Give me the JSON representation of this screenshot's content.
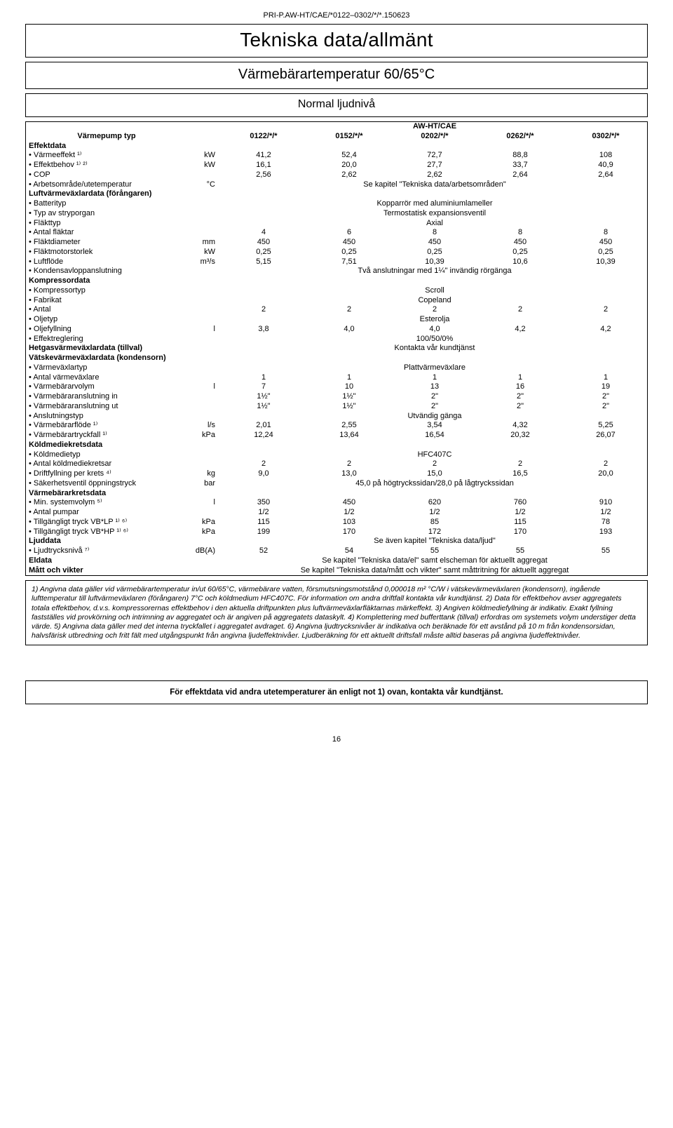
{
  "doc_code": "PRI-P.AW-HT/CAE/*0122–0302/*/*.150623",
  "headings": {
    "main": "Tekniska data/allmänt",
    "sub": "Värmebärartemperatur 60/65°C",
    "mode": "Normal ljudnivå"
  },
  "brand": "AW-HT/CAE",
  "pump_type_label": "Värmepump typ",
  "models": [
    "0122/*/*",
    "0152/*/*",
    "0202/*/*",
    "0262/*/*",
    "0302/*/*"
  ],
  "sections": {
    "effektdata": {
      "title": "Effektdata",
      "rows": [
        {
          "label": "Värmeeffekt ¹⁾",
          "unit": "kW",
          "vals": [
            "41,2",
            "52,4",
            "72,7",
            "88,8",
            "108"
          ]
        },
        {
          "label": "Effektbehov ¹⁾ ²⁾",
          "unit": "kW",
          "vals": [
            "16,1",
            "20,0",
            "27,7",
            "33,7",
            "40,9"
          ]
        },
        {
          "label": "COP",
          "unit": "",
          "vals": [
            "2,56",
            "2,62",
            "2,62",
            "2,64",
            "2,64"
          ]
        },
        {
          "label": "Arbetsområde/utetemperatur",
          "unit": "°C",
          "span": "Se kapitel \"Tekniska data/arbetsområden\""
        }
      ]
    },
    "luftvv": {
      "title": "Luftvärmeväxlardata (förångaren)",
      "rows": [
        {
          "label": "Batterityp",
          "unit": "",
          "span": "Kopparrör med aluminiumlameller"
        },
        {
          "label": "Typ av stryporgan",
          "unit": "",
          "span": "Termostatisk expansionsventil"
        },
        {
          "label": "Fläkttyp",
          "unit": "",
          "span": "Axial"
        },
        {
          "label": "Antal fläktar",
          "unit": "",
          "vals": [
            "4",
            "6",
            "8",
            "8",
            "8"
          ]
        },
        {
          "label": "Fläktdiameter",
          "unit": "mm",
          "vals": [
            "450",
            "450",
            "450",
            "450",
            "450"
          ]
        },
        {
          "label": "Fläktmotorstorlek",
          "unit": "kW",
          "vals": [
            "0,25",
            "0,25",
            "0,25",
            "0,25",
            "0,25"
          ]
        },
        {
          "label": "Luftflöde",
          "unit": "m³/s",
          "vals": [
            "5,15",
            "7,51",
            "10,39",
            "10,6",
            "10,39"
          ]
        },
        {
          "label": "Kondensavloppanslutning",
          "unit": "",
          "span": "Två anslutningar med 1¼\" invändig rörgänga"
        }
      ]
    },
    "kompressor": {
      "title": "Kompressordata",
      "rows": [
        {
          "label": "Kompressortyp",
          "unit": "",
          "span": "Scroll"
        },
        {
          "label": "Fabrikat",
          "unit": "",
          "span": "Copeland"
        },
        {
          "label": "Antal",
          "unit": "",
          "vals": [
            "2",
            "2",
            "2",
            "2",
            "2"
          ]
        },
        {
          "label": "Oljetyp",
          "unit": "",
          "span": "Esterolja"
        },
        {
          "label": "Oljefyllning",
          "unit": "l",
          "vals": [
            "3,8",
            "4,0",
            "4,0",
            "4,2",
            "4,2"
          ]
        },
        {
          "label": "Effektreglering",
          "unit": "",
          "span": "100/50/0%"
        }
      ]
    },
    "hetgas": {
      "title": "Hetgasvärmeväxlardata (tillval)",
      "span": "Kontakta vår kundtjänst"
    },
    "vatskevv": {
      "title": "Vätskevärmeväxlardata (kondensorn)",
      "rows": [
        {
          "label": "Värmeväxlartyp",
          "unit": "",
          "span": "Plattvärmeväxlare"
        },
        {
          "label": "Antal värmeväxlare",
          "unit": "",
          "vals": [
            "1",
            "1",
            "1",
            "1",
            "1"
          ]
        },
        {
          "label": "Värmebärarvolym",
          "unit": "l",
          "vals": [
            "7",
            "10",
            "13",
            "16",
            "19"
          ]
        },
        {
          "label": "Värmebäraranslutning in",
          "unit": "",
          "vals": [
            "1½\"",
            "1½\"",
            "2\"",
            "2\"",
            "2\""
          ]
        },
        {
          "label": "Värmebäraranslutning ut",
          "unit": "",
          "vals": [
            "1½\"",
            "1½\"",
            "2\"",
            "2\"",
            "2\""
          ]
        },
        {
          "label": "Anslutningstyp",
          "unit": "",
          "span": "Utvändig gänga"
        },
        {
          "label": "Värmebärarflöde ¹⁾",
          "unit": "l/s",
          "vals": [
            "2,01",
            "2,55",
            "3,54",
            "4,32",
            "5,25"
          ]
        },
        {
          "label": "Värmebärartryckfall ¹⁾",
          "unit": "kPa",
          "vals": [
            "12,24",
            "13,64",
            "16,54",
            "20,32",
            "26,07"
          ]
        }
      ]
    },
    "koldmedie": {
      "title": "Köldmediekretsdata",
      "rows": [
        {
          "label": "Köldmedietyp",
          "unit": "",
          "span": "HFC407C"
        },
        {
          "label": "Antal köldmediekretsar",
          "unit": "",
          "vals": [
            "2",
            "2",
            "2",
            "2",
            "2"
          ]
        },
        {
          "label": "Driftfyllning per krets ⁴⁾",
          "unit": "kg",
          "vals": [
            "9,0",
            "13,0",
            "15,0",
            "16,5",
            "20,0"
          ]
        },
        {
          "label": "Säkerhetsventil öppningstryck",
          "unit": "bar",
          "span": "45,0 på högtryckssidan/28,0 på lågtryckssidan"
        }
      ]
    },
    "varmebarark": {
      "title": "Värmebärarkretsdata",
      "rows": [
        {
          "label": "Min. systemvolym ⁵⁾",
          "unit": "l",
          "vals": [
            "350",
            "450",
            "620",
            "760",
            "910"
          ]
        },
        {
          "label": "Antal pumpar",
          "unit": "",
          "vals": [
            "1/2",
            "1/2",
            "1/2",
            "1/2",
            "1/2"
          ]
        },
        {
          "label": "Tillgängligt tryck VB*LP ¹⁾ ⁶⁾",
          "unit": "kPa",
          "vals": [
            "115",
            "103",
            "85",
            "115",
            "78"
          ]
        },
        {
          "label": "Tillgängligt tryck VB*HP ¹⁾ ⁶⁾",
          "unit": "kPa",
          "vals": [
            "199",
            "170",
            "172",
            "170",
            "193"
          ]
        }
      ]
    },
    "ljud": {
      "title": "Ljuddata",
      "title_span": "Se även kapitel \"Tekniska data/ljud\"",
      "rows": [
        {
          "label": "Ljudtrycksnivå ⁷⁾",
          "unit": "dB(A)",
          "vals": [
            "52",
            "54",
            "55",
            "55",
            "55"
          ]
        }
      ]
    },
    "eldata": {
      "title": "Eldata",
      "span": "Se kapitel \"Tekniska data/el\" samt elscheman för aktuellt aggregat"
    },
    "matt": {
      "title": "Mått och vikter",
      "span": "Se kapitel \"Tekniska data/mått och vikter\" samt måttritning för aktuellt aggregat"
    }
  },
  "notes": "1) Angivna data gäller vid värmebärartemperatur in/ut 60/65°C, värmebärare vatten, försmutsningsmotstånd 0,000018 m² °C/W i vätskevärmeväxlaren (kondensorn), ingående lufttemperatur till luftvärmeväxlaren (förångaren) 7°C och köldmedium HFC407C. För information om andra driftfall kontakta vår kundtjänst. 2) Data för effektbehov avser aggregatets totala effektbehov, d.v.s. kompressorernas effektbehov i den aktuella driftpunkten plus luftvärmeväxlarfläktarnas märkeffekt. 3) Angiven köldmediefyllning är indikativ. Exakt fyllning fastställes vid provkörning och intrimning av aggregatet och är angiven på aggregatets dataskylt. 4) Komplettering med bufferttank (tillval) erfordras om systemets volym understiger detta värde. 5) Angivna data gäller med det interna tryckfallet i aggregatet avdraget. 6) Angivna ljudtrycksnivåer är indikativa och beräknade för ett avstånd på 10 m från kondensorsidan, halvsfärisk utbredning och fritt fält med utgångspunkt från angivna ljudeffektnivåer. Ljudberäkning för ett aktuellt driftsfall måste alltid baseras på angivna ljudeffektnivåer.",
  "footer_note": "För effektdata vid andra utetemperaturer än enligt not 1) ovan, kontakta vår kundtjänst.",
  "page_number": "16",
  "colors": {
    "text": "#000000",
    "border": "#000000",
    "background": "#ffffff"
  }
}
